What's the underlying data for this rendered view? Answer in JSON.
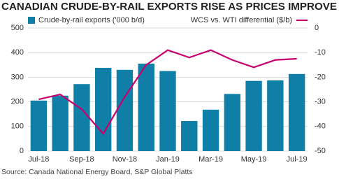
{
  "chart_data": {
    "type": "bar",
    "title": "CANADIAN CRUDE-BY-RAIL EXPORTS RISE AS PRICES IMPROVE",
    "source": "Source: Canada National Energy Board, S&P Global Platts",
    "categories": [
      "Jul-18",
      null,
      "Sep-18",
      null,
      "Nov-18",
      null,
      "Jan-19",
      null,
      "Mar-19",
      null,
      "May-19",
      null,
      "Jul-19"
    ],
    "series": [
      {
        "name": "Crude-by-rail exports ('000 b/d)",
        "color": "#0f7fa8",
        "values": [
          205,
          225,
          272,
          338,
          330,
          355,
          325,
          122,
          168,
          232,
          285,
          287,
          313
        ]
      },
      {
        "name": "WCS vs. WTI differential ($/b)",
        "color": "#c8006e",
        "axis": "y2",
        "type": "line",
        "values": [
          -29,
          -27,
          -33,
          -43,
          -28,
          -15,
          -9,
          -12,
          -9,
          -13,
          -16,
          -13,
          -12.5
        ]
      }
    ],
    "ylim": [
      0,
      500
    ],
    "yticks": [
      0,
      100,
      200,
      300,
      400,
      500
    ],
    "y2lim": [
      -50,
      0
    ],
    "y2ticks": [
      0,
      -10,
      -20,
      -30,
      -40,
      -50
    ],
    "grid": true
  }
}
